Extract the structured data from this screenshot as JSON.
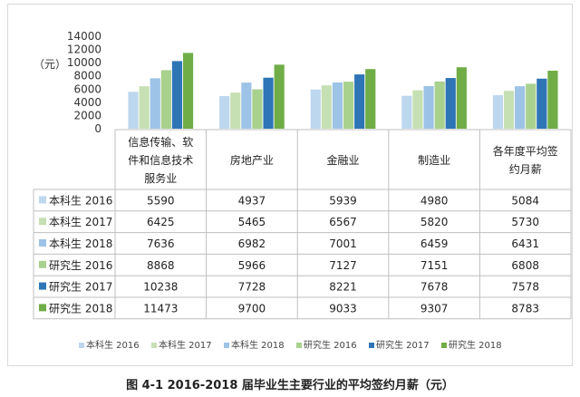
{
  "chart_data": {
    "type": "bar",
    "title": "",
    "ylabel": "（元）",
    "ylim": [
      0,
      14000
    ],
    "yticks": [
      0,
      2000,
      4000,
      6000,
      8000,
      10000,
      12000,
      14000
    ],
    "grid": false,
    "legend": "bottom",
    "categories": [
      "信息传输、软件和信息技术服务业",
      "房地产业",
      "金融业",
      "制造业",
      "各年度平均签约月薪"
    ],
    "category_lines": [
      [
        "信息传输、软",
        "件和信息技术",
        "服务业"
      ],
      [
        "房地产业"
      ],
      [
        "金融业"
      ],
      [
        "制造业"
      ],
      [
        "各年度平均签",
        "约月薪"
      ]
    ],
    "series": [
      {
        "name": "本科生 2016",
        "color": "#bdd7ee",
        "values": [
          5590,
          4937,
          5939,
          4980,
          5084
        ]
      },
      {
        "name": "本科生 2017",
        "color": "#c6e0b4",
        "values": [
          6425,
          5465,
          6567,
          5820,
          5730
        ]
      },
      {
        "name": "本科生 2018",
        "color": "#9dc3e6",
        "values": [
          7636,
          6982,
          7001,
          6459,
          6431
        ]
      },
      {
        "name": "研究生 2016",
        "color": "#a9d18e",
        "values": [
          8868,
          5966,
          7127,
          7151,
          6808
        ]
      },
      {
        "name": "研究生 2017",
        "color": "#2e75b6",
        "values": [
          10238,
          7728,
          8221,
          7678,
          7578
        ]
      },
      {
        "name": "研究生 2018",
        "color": "#70ad47",
        "values": [
          11473,
          9700,
          9033,
          9307,
          8783
        ]
      }
    ]
  },
  "caption": "图 4-1    2016-2018 届毕业生主要行业的平均签约月薪（元）"
}
